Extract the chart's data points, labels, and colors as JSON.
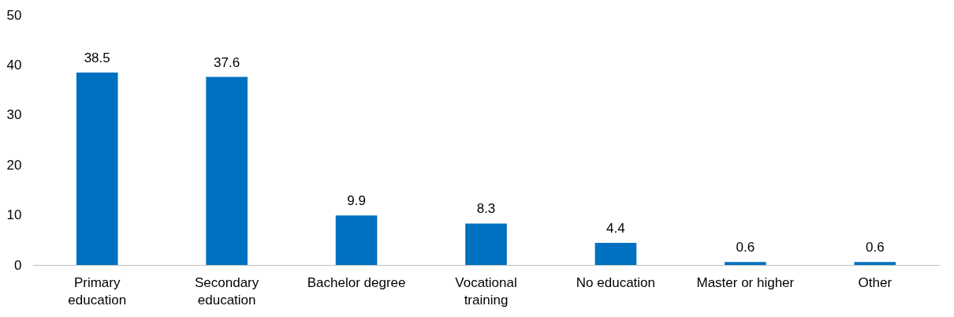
{
  "chart_data": {
    "type": "bar",
    "categories": [
      "Primary education",
      "Secondary education",
      "Bachelor degree",
      "Vocational training",
      "No education",
      "Master or higher",
      "Other"
    ],
    "values": [
      38.5,
      37.6,
      9.9,
      8.3,
      4.4,
      0.6,
      0.6
    ],
    "color": "#0070c0",
    "ylim": [
      0,
      50
    ],
    "yticks": [
      0,
      10,
      20,
      30,
      40,
      50
    ],
    "grid": false,
    "data_labels": true
  }
}
